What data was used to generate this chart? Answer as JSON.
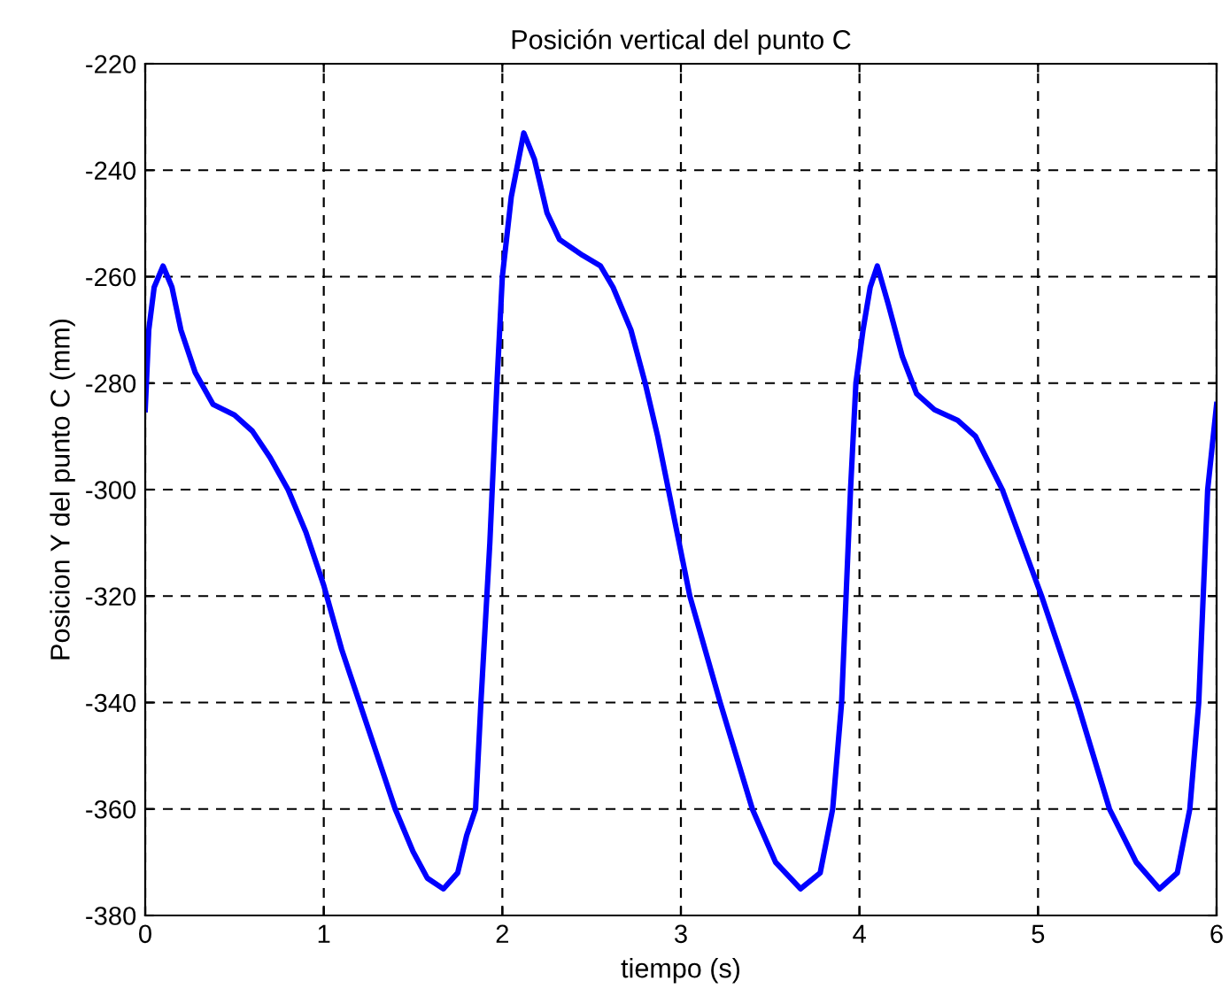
{
  "chart_data": {
    "type": "line",
    "title": "Posición vertical del punto C",
    "xlabel": "tiempo (s)",
    "ylabel": "Posicion Y del punto C (mm)",
    "xlim": [
      0,
      6
    ],
    "ylim": [
      -380,
      -220
    ],
    "xticks": [
      0,
      1,
      2,
      3,
      4,
      5,
      6
    ],
    "yticks": [
      -380,
      -360,
      -340,
      -320,
      -300,
      -280,
      -260,
      -240,
      -220
    ],
    "grid": true,
    "legend": false,
    "series": [
      {
        "color": "#0000ff",
        "line_style": "solid",
        "x": [
          0,
          0.02,
          0.05,
          0.1,
          0.15,
          0.2,
          0.28,
          0.38,
          0.5,
          0.6,
          0.7,
          0.8,
          0.9,
          1.0,
          1.1,
          1.2,
          1.3,
          1.4,
          1.5,
          1.58,
          1.67,
          1.75,
          1.8,
          1.85,
          1.88,
          1.93,
          1.97,
          2.0,
          2.05,
          2.12,
          2.18,
          2.25,
          2.32,
          2.45,
          2.55,
          2.62,
          2.72,
          2.8,
          2.87,
          2.93,
          3.05,
          3.22,
          3.4,
          3.53,
          3.67,
          3.78,
          3.85,
          3.9,
          3.95,
          3.98,
          4.02,
          4.06,
          4.1,
          4.16,
          4.24,
          4.32,
          4.42,
          4.55,
          4.65,
          4.8,
          5.02,
          5.22,
          5.4,
          5.55,
          5.68,
          5.78,
          5.85,
          5.9,
          5.95,
          6.0
        ],
        "values": [
          -285,
          -270,
          -262,
          -258,
          -262,
          -270,
          -278,
          -284,
          -286,
          -289,
          -294,
          -300,
          -308,
          -318,
          -330,
          -340,
          -350,
          -360,
          -368,
          -373,
          -375,
          -372,
          -365,
          -360,
          -340,
          -310,
          -280,
          -260,
          -245,
          -233,
          -238,
          -248,
          -253,
          -256,
          -258,
          -262,
          -270,
          -280,
          -290,
          -300,
          -320,
          -340,
          -360,
          -370,
          -375,
          -372,
          -360,
          -340,
          -300,
          -280,
          -270,
          -262,
          -258,
          -265,
          -275,
          -282,
          -285,
          -287,
          -290,
          -300,
          -320,
          -340,
          -360,
          -370,
          -375,
          -372,
          -360,
          -340,
          -300,
          -284
        ]
      }
    ]
  }
}
